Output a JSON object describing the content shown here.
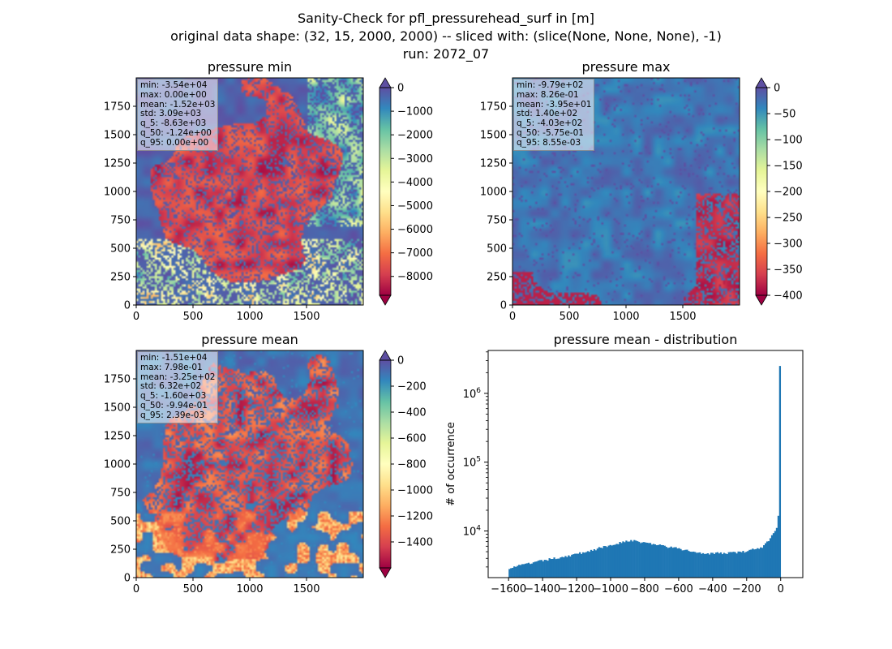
{
  "figure": {
    "title_lines": [
      "Sanity-Check for pfl_pressurehead_surf in [m]",
      "original data shape: (32, 15, 2000, 2000) -- sliced with: (slice(None, None, None), -1)",
      "run: 2072_07"
    ]
  },
  "colormap": {
    "name": "Spectral",
    "stops": [
      "#9e0142",
      "#d53e4f",
      "#f46d43",
      "#fdae61",
      "#fee08b",
      "#ffffbf",
      "#e6f598",
      "#abdda4",
      "#66c2a5",
      "#3288bd",
      "#5e4fa2"
    ]
  },
  "chart_data": [
    {
      "type": "heatmap",
      "title": "pressure min",
      "xlim": [
        0,
        2000
      ],
      "ylim": [
        0,
        2000
      ],
      "xticks": [
        0,
        500,
        1000,
        1500
      ],
      "yticks": [
        0,
        250,
        500,
        750,
        1000,
        1250,
        1500,
        1750
      ],
      "colorbar": {
        "vmin": -8800,
        "vmax": 0,
        "ticks": [
          0,
          -1000,
          -2000,
          -3000,
          -4000,
          -5000,
          -6000,
          -7000,
          -8000
        ],
        "extend": "both"
      },
      "stats": [
        "min: -3.54e+04",
        "max: 0.00e+00",
        "mean: -1.52e+03",
        "std: 3.09e+03",
        "q_5: -8.63e+03",
        "q_50: -1.24e+00",
        "q_95: 0.00e+00"
      ]
    },
    {
      "type": "heatmap",
      "title": "pressure max",
      "xlim": [
        0,
        2000
      ],
      "ylim": [
        0,
        2000
      ],
      "xticks": [
        0,
        500,
        1000,
        1500
      ],
      "yticks": [
        0,
        250,
        500,
        750,
        1000,
        1250,
        1500,
        1750
      ],
      "colorbar": {
        "vmin": -400,
        "vmax": 0,
        "ticks": [
          0,
          -50,
          -100,
          -150,
          -200,
          -250,
          -300,
          -350,
          -400
        ],
        "extend": "both"
      },
      "stats": [
        "min: -9.79e+02",
        "max: 8.26e-01",
        "mean: -3.95e+01",
        "std: 1.40e+02",
        "q_5: -4.03e+02",
        "q_50: -5.75e-01",
        "q_95: 8.55e-03"
      ]
    },
    {
      "type": "heatmap",
      "title": "pressure mean",
      "xlim": [
        0,
        2000
      ],
      "ylim": [
        0,
        2000
      ],
      "xticks": [
        0,
        500,
        1000,
        1500
      ],
      "yticks": [
        0,
        250,
        500,
        750,
        1000,
        1250,
        1500,
        1750
      ],
      "colorbar": {
        "vmin": -1600,
        "vmax": 0,
        "ticks": [
          0,
          -200,
          -400,
          -600,
          -800,
          -1000,
          -1200,
          -1400
        ],
        "extend": "both"
      },
      "stats": [
        "min: -1.51e+04",
        "max: 7.98e-01",
        "mean: -3.25e+02",
        "std: 6.32e+02",
        "q_5: -1.60e+03",
        "q_50: -9.94e-01",
        "q_95: 2.39e-03"
      ]
    },
    {
      "type": "bar",
      "title": "pressure mean - distribution",
      "ylabel": "# of occurrence",
      "yscale": "log",
      "xlim": [
        -1720,
        130
      ],
      "ylim": [
        2100,
        4200000
      ],
      "xticks": [
        -1600,
        -1400,
        -1200,
        -1000,
        -800,
        -600,
        -400,
        -200,
        0
      ],
      "xticklabels": [
        "−1600",
        "−1400",
        "−1200",
        "−1000",
        "−800",
        "−600",
        "−400",
        "−200",
        "0"
      ],
      "yticks": [
        10000,
        100000,
        1000000
      ],
      "bar_color": "#1f77b4",
      "bins": {
        "x": [
          -1600,
          -1400,
          -1200,
          -1000,
          -900,
          -800,
          -600,
          -500,
          -400,
          -300,
          -200,
          -100,
          -50,
          -20,
          -10,
          -5,
          -2,
          0
        ],
        "y": [
          2900,
          3700,
          4600,
          6200,
          7300,
          6800,
          5500,
          4900,
          4700,
          4800,
          5000,
          6000,
          8500,
          12000,
          20000,
          23000,
          30000,
          2500000
        ]
      }
    }
  ]
}
